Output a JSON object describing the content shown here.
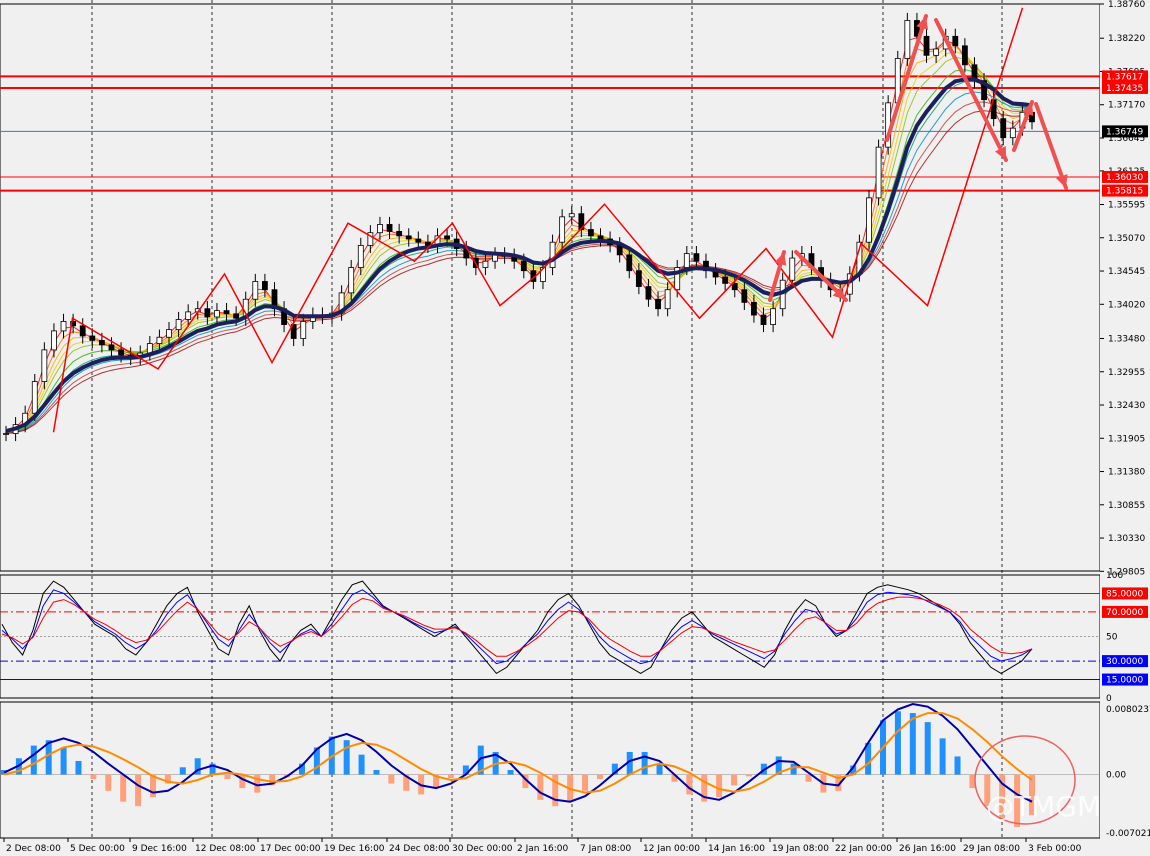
{
  "chart_data": [
    {
      "id": "price",
      "type": "candlestick",
      "y_ticks": [
        "1.38760",
        "1.38220",
        "1.37695",
        "1.37170",
        "1.36645",
        "1.36125",
        "1.35595",
        "1.35070",
        "1.34545",
        "1.34020",
        "1.33480",
        "1.32955",
        "1.32430",
        "1.31905",
        "1.31380",
        "1.30855",
        "1.30330",
        "1.29805"
      ],
      "ylim": [
        1.2981,
        1.3876
      ],
      "current_price": "1.36749",
      "levels": [
        {
          "label": "1.37617",
          "value": 1.37617,
          "color": "#ff0000"
        },
        {
          "label": "1.37435",
          "value": 1.37435,
          "color": "#ff0000"
        },
        {
          "label": "1.36030",
          "value": 1.3603,
          "color": "#ff0000"
        },
        {
          "label": "1.35815",
          "value": 1.35815,
          "color": "#ff0000"
        }
      ],
      "closes": [
        1.3198,
        1.3212,
        1.323,
        1.328,
        1.333,
        1.336,
        1.3375,
        1.3368,
        1.3352,
        1.3345,
        1.3338,
        1.333,
        1.3322,
        1.3318,
        1.3325,
        1.334,
        1.335,
        1.3362,
        1.3378,
        1.339,
        1.3395,
        1.3382,
        1.3392,
        1.3387,
        1.338,
        1.341,
        1.3438,
        1.3425,
        1.3395,
        1.337,
        1.3348,
        1.3375,
        1.3385,
        1.3383,
        1.3388,
        1.342,
        1.346,
        1.3495,
        1.3515,
        1.3528,
        1.3517,
        1.351,
        1.3505,
        1.35,
        1.3495,
        1.351,
        1.3505,
        1.349,
        1.3475,
        1.346,
        1.347,
        1.348,
        1.3478,
        1.347,
        1.3455,
        1.3438,
        1.346,
        1.35,
        1.354,
        1.3545,
        1.352,
        1.351,
        1.3505,
        1.3496,
        1.348,
        1.3455,
        1.343,
        1.341,
        1.3395,
        1.3425,
        1.346,
        1.3482,
        1.347,
        1.3455,
        1.3445,
        1.3435,
        1.3425,
        1.3405,
        1.3385,
        1.337,
        1.3395,
        1.344,
        1.3475,
        1.3482,
        1.346,
        1.344,
        1.3425,
        1.3418,
        1.345,
        1.35,
        1.357,
        1.365,
        1.372,
        1.379,
        1.385,
        1.3825,
        1.3795,
        1.3805,
        1.3825,
        1.381,
        1.378,
        1.3755,
        1.3725,
        1.3695,
        1.3665,
        1.368,
        1.3705,
        1.369
      ],
      "ema_slow": [
        1.3202,
        1.3206,
        1.3212,
        1.3225,
        1.3243,
        1.3262,
        1.328,
        1.3293,
        1.3302,
        1.3309,
        1.3314,
        1.3317,
        1.3318,
        1.3318,
        1.3319,
        1.3323,
        1.3328,
        1.3335,
        1.3343,
        1.3352,
        1.336,
        1.3364,
        1.337,
        1.3373,
        1.3375,
        1.3382,
        1.3393,
        1.3399,
        1.3398,
        1.3393,
        1.3384,
        1.3383,
        1.3383,
        1.3383,
        1.3384,
        1.3391,
        1.3403,
        1.3421,
        1.344,
        1.3458,
        1.347,
        1.3479,
        1.3486,
        1.349,
        1.3492,
        1.3495,
        1.3497,
        1.3496,
        1.3492,
        1.3486,
        1.3483,
        1.3482,
        1.3481,
        1.3479,
        1.3475,
        1.3468,
        1.3466,
        1.3472,
        1.3484,
        1.3494,
        1.3499,
        1.3501,
        1.3502,
        1.3501,
        1.3498,
        1.349,
        1.348,
        1.3468,
        1.3455,
        1.345,
        1.3452,
        1.3457,
        1.3459,
        1.3458,
        1.3456,
        1.3452,
        1.3447,
        1.344,
        1.3431,
        1.3421,
        1.3417,
        1.3421,
        1.343,
        1.3439,
        1.3442,
        1.3442,
        1.3439,
        1.3436,
        1.3438,
        1.345,
        1.3474,
        1.3509,
        1.3551,
        1.3599,
        1.365,
        1.3684,
        1.3706,
        1.3725,
        1.3743,
        1.3754,
        1.3757,
        1.3757,
        1.3751,
        1.3741,
        1.3727,
        1.3719,
        1.3718,
        1.3716
      ]
    },
    {
      "id": "stoch",
      "type": "line",
      "y_ticks": [
        "100",
        "85.0000",
        "70.0000",
        "50",
        "30.0000",
        "15.0000",
        "0"
      ],
      "ylim": [
        0,
        100
      ],
      "levels": [
        {
          "label": "85.0000",
          "value": 85,
          "color": "#ff0000",
          "style": "solid"
        },
        {
          "label": "70.0000",
          "value": 70,
          "color": "#ff0000",
          "style": "dashdot"
        },
        {
          "label": "30.0000",
          "value": 30,
          "color": "#0000ff",
          "style": "dashdot"
        },
        {
          "label": "15.0000",
          "value": 15,
          "color": "#0000ff",
          "style": "solid"
        }
      ],
      "series": [
        {
          "color": "#000000",
          "values": [
            60,
            45,
            35,
            55,
            85,
            95,
            90,
            80,
            70,
            60,
            55,
            50,
            40,
            35,
            45,
            60,
            75,
            85,
            90,
            70,
            55,
            40,
            35,
            60,
            75,
            55,
            40,
            30,
            45,
            55,
            60,
            50,
            65,
            80,
            92,
            95,
            85,
            75,
            70,
            65,
            60,
            55,
            50,
            55,
            60,
            50,
            40,
            30,
            20,
            25,
            35,
            45,
            55,
            70,
            80,
            85,
            75,
            60,
            45,
            35,
            30,
            25,
            20,
            25,
            40,
            55,
            65,
            70,
            60,
            50,
            45,
            40,
            35,
            30,
            25,
            35,
            55,
            70,
            80,
            75,
            60,
            50,
            55,
            70,
            85,
            90,
            92,
            90,
            88,
            85,
            80,
            75,
            70,
            60,
            45,
            35,
            25,
            20,
            25,
            30,
            40
          ]
        },
        {
          "color": "#0000ff",
          "values": [
            55,
            48,
            40,
            50,
            75,
            88,
            85,
            78,
            70,
            62,
            57,
            52,
            45,
            40,
            45,
            55,
            68,
            78,
            84,
            72,
            60,
            48,
            42,
            55,
            68,
            57,
            45,
            37,
            45,
            52,
            56,
            50,
            60,
            72,
            84,
            88,
            82,
            74,
            70,
            66,
            61,
            57,
            53,
            55,
            58,
            52,
            44,
            36,
            28,
            30,
            37,
            45,
            52,
            63,
            72,
            78,
            72,
            62,
            50,
            42,
            37,
            32,
            28,
            30,
            40,
            50,
            58,
            63,
            58,
            52,
            48,
            44,
            40,
            36,
            32,
            38,
            52,
            63,
            72,
            70,
            60,
            52,
            55,
            65,
            78,
            84,
            86,
            85,
            84,
            82,
            78,
            74,
            70,
            62,
            50,
            42,
            34,
            30,
            32,
            35,
            40
          ]
        },
        {
          "color": "#ff0000",
          "values": [
            52,
            49,
            44,
            49,
            65,
            78,
            80,
            76,
            70,
            64,
            60,
            55,
            49,
            45,
            47,
            53,
            62,
            71,
            78,
            72,
            62,
            52,
            47,
            53,
            62,
            57,
            48,
            42,
            46,
            51,
            54,
            50,
            57,
            66,
            76,
            81,
            79,
            73,
            70,
            67,
            63,
            59,
            56,
            56,
            57,
            53,
            47,
            40,
            34,
            34,
            38,
            43,
            49,
            57,
            65,
            71,
            70,
            64,
            55,
            48,
            43,
            38,
            34,
            34,
            39,
            46,
            53,
            58,
            57,
            53,
            50,
            46,
            43,
            40,
            37,
            39,
            47,
            56,
            64,
            66,
            61,
            55,
            55,
            61,
            71,
            77,
            80,
            82,
            82,
            81,
            79,
            76,
            72,
            66,
            56,
            49,
            42,
            37,
            36,
            37,
            40
          ]
        }
      ]
    },
    {
      "id": "macd",
      "type": "bar",
      "y_ticks": [
        "0.0080237",
        "0.00",
        "-0.007021"
      ],
      "ylim": [
        -0.007021,
        0.0080237
      ],
      "histogram": [
        0.0005,
        0.0018,
        0.0032,
        0.0038,
        0.003,
        0.0015,
        -0.0005,
        -0.0018,
        -0.003,
        -0.0035,
        -0.0025,
        -0.001,
        0.0008,
        0.0018,
        0.0012,
        -0.0005,
        -0.0015,
        -0.002,
        -0.0012,
        -0.0003,
        0.0012,
        0.003,
        0.0042,
        0.0038,
        0.0022,
        0.0005,
        -0.001,
        -0.0018,
        -0.0022,
        -0.0015,
        -0.0004,
        0.001,
        0.0032,
        0.0025,
        0.0005,
        -0.0015,
        -0.0028,
        -0.0035,
        -0.003,
        -0.0018,
        -0.0005,
        0.0012,
        0.0025,
        0.0025,
        0.0012,
        -0.0008,
        -0.0022,
        -0.003,
        -0.0025,
        -0.0012,
        -0.0002,
        0.0012,
        0.002,
        0.0012,
        -0.0008,
        -0.002,
        -0.0018,
        0.001,
        0.0035,
        0.006,
        0.007,
        0.0068,
        0.0058,
        0.004,
        0.002,
        -0.0015,
        -0.0035,
        -0.005,
        -0.0058,
        -0.0045
      ],
      "series": [
        {
          "color": "#0000aa",
          "values": [
            0.0002,
            0.001,
            0.0022,
            0.0035,
            0.004,
            0.0035,
            0.0025,
            0.0012,
            0.0,
            -0.0012,
            -0.002,
            -0.0018,
            -0.0008,
            0.0005,
            0.001,
            0.0005,
            -0.0005,
            -0.0012,
            -0.001,
            -0.0002,
            0.001,
            0.0028,
            0.004,
            0.0045,
            0.0038,
            0.0025,
            0.001,
            -0.0002,
            -0.0012,
            -0.0015,
            -0.001,
            0.0,
            0.0018,
            0.0022,
            0.0012,
            -0.0005,
            -0.002,
            -0.0028,
            -0.003,
            -0.0024,
            -0.0012,
            0.0002,
            0.0015,
            0.002,
            0.0015,
            0.0,
            -0.0015,
            -0.0025,
            -0.0028,
            -0.002,
            -0.0008,
            0.0005,
            0.0015,
            0.0014,
            0.0002,
            -0.001,
            -0.0012,
            0.0008,
            0.0035,
            0.006,
            0.0072,
            0.0078,
            0.0075,
            0.0065,
            0.005,
            0.003,
            0.001,
            -0.001,
            -0.0022,
            -0.003
          ]
        },
        {
          "color": "#ff8c00",
          "values": [
            0.0,
            0.0004,
            0.0012,
            0.0022,
            0.003,
            0.0033,
            0.0031,
            0.0025,
            0.0017,
            0.0008,
            -0.0002,
            -0.0008,
            -0.001,
            -0.0006,
            0.0,
            0.0002,
            0.0,
            -0.0005,
            -0.0008,
            -0.0007,
            -0.0002,
            0.0008,
            0.002,
            0.003,
            0.0035,
            0.0033,
            0.0026,
            0.0016,
            0.0006,
            -0.0002,
            -0.0006,
            -0.0004,
            0.0004,
            0.0012,
            0.0014,
            0.001,
            0.0002,
            -0.0008,
            -0.0016,
            -0.002,
            -0.0018,
            -0.001,
            0.0,
            0.0008,
            0.0012,
            0.0009,
            0.0002,
            -0.0008,
            -0.0016,
            -0.0019,
            -0.0016,
            -0.0008,
            0.0002,
            0.0008,
            0.0008,
            0.0002,
            -0.0004,
            0.0,
            0.0012,
            0.003,
            0.0048,
            0.0062,
            0.0068,
            0.0068,
            0.0062,
            0.005,
            0.0036,
            0.002,
            0.0006,
            -0.0006
          ]
        }
      ]
    }
  ],
  "x_labels": [
    "2 Dec 08:00",
    "5 Dec 00:00",
    "9 Dec 16:00",
    "12 Dec 08:00",
    "17 Dec 00:00",
    "19 Dec 16:00",
    "24 Dec 08:00",
    "30 Dec 00:00",
    "2 Jan 16:00",
    "7 Jan 08:00",
    "12 Jan 00:00",
    "14 Jan 16:00",
    "19 Jan 08:00",
    "22 Jan 00:00",
    "26 Jan 16:00",
    "29 Jan 08:00",
    "3 Feb 00:00"
  ],
  "watermark": "@TMGM"
}
